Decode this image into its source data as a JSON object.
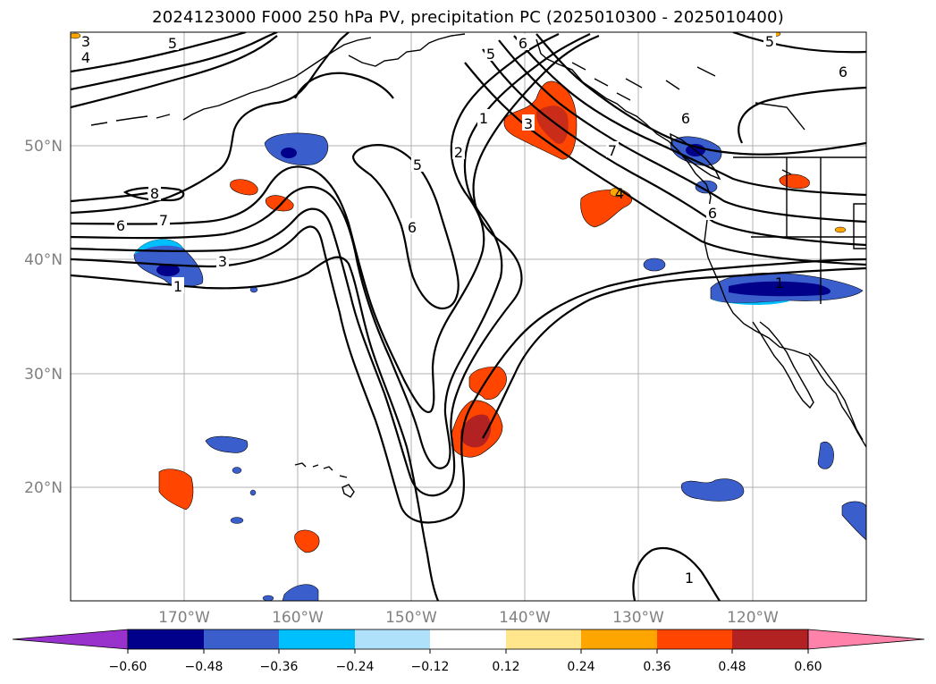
{
  "title": "2024123000 F000 250 hPa PV, precipitation PC (2025010300 - 2025010400)",
  "map": {
    "lat_labels": [
      "50°N",
      "40°N",
      "30°N",
      "20°N"
    ],
    "lon_labels": [
      "170°W",
      "160°W",
      "150°W",
      "140°W",
      "130°W",
      "120°W"
    ],
    "lon_range": [
      -180,
      -110
    ],
    "lat_range": [
      10,
      60
    ]
  },
  "pv_contour_labels": [
    "3",
    "4",
    "5",
    "5",
    "5",
    "6",
    "6",
    "6",
    "6",
    "1",
    "2",
    "3",
    "7",
    "8",
    "7",
    "6",
    "3",
    "1",
    "1",
    "4",
    "5",
    "6",
    "1"
  ],
  "colorbar": {
    "ticks": [
      "−0.60",
      "−0.48",
      "−0.36",
      "−0.24",
      "−0.12",
      "0.12",
      "0.24",
      "0.36",
      "0.48",
      "0.60"
    ],
    "colors": [
      "#9932cc",
      "#00008b",
      "#3a5fcd",
      "#00bfff",
      "#afe1fa",
      "#ffffff",
      "#ffe68c",
      "#ffa500",
      "#ff4500",
      "#b22222",
      "#ff82ab"
    ]
  }
}
